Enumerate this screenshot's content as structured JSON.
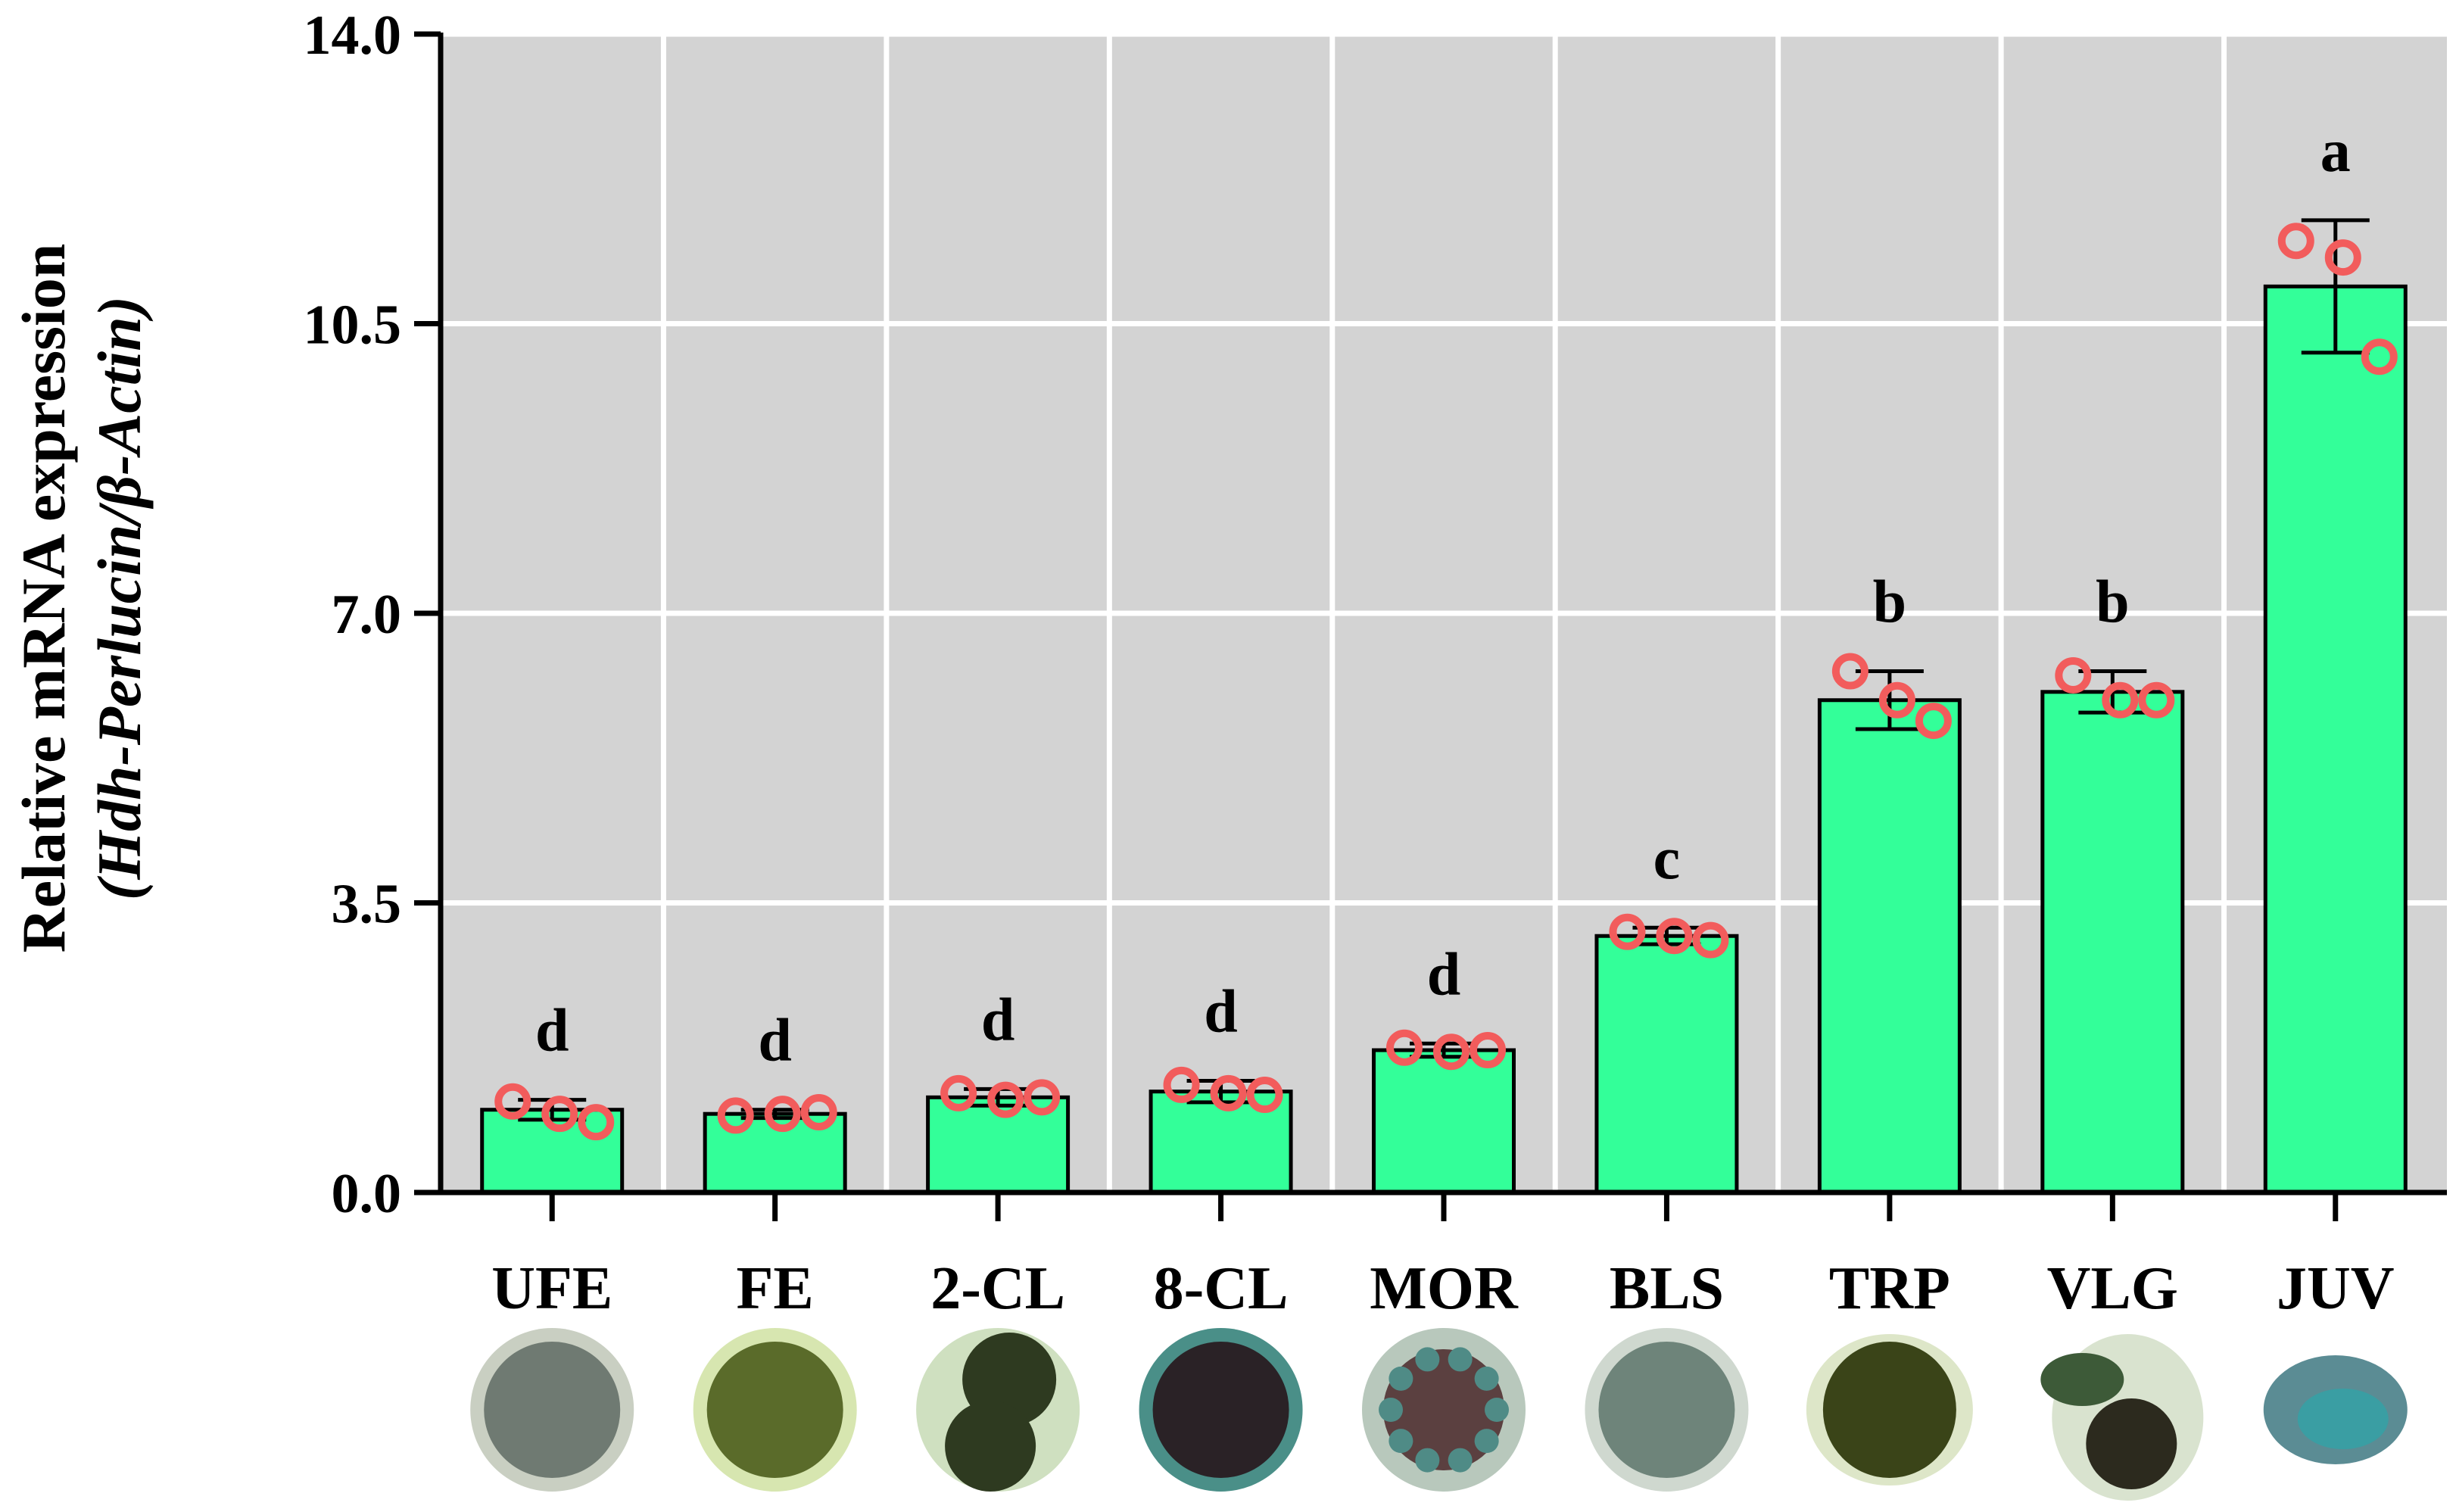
{
  "chart_data": {
    "type": "bar",
    "ylabel_line1": "Relative mRNA expression",
    "ylabel_line2": "(Hdh-Perlucin/β-Actin)",
    "ylim": [
      0,
      14
    ],
    "yticks": [
      "0.0",
      "3.5",
      "7.0",
      "10.5",
      "14.0"
    ],
    "ytick_values": [
      0,
      3.5,
      7,
      10.5,
      14
    ],
    "grid": true,
    "categories": [
      "UFE",
      "FE",
      "2-CL",
      "8-CL",
      "MOR",
      "BLS",
      "TRP",
      "VLG",
      "JUV"
    ],
    "values": [
      1.0,
      0.95,
      1.15,
      1.22,
      1.72,
      3.1,
      5.95,
      6.05,
      10.95
    ],
    "errors": [
      0.12,
      0.05,
      0.1,
      0.13,
      0.08,
      0.1,
      0.35,
      0.25,
      0.8
    ],
    "points": [
      [
        1.1,
        0.95,
        0.85
      ],
      [
        0.93,
        0.95,
        0.97
      ],
      [
        1.2,
        1.12,
        1.15
      ],
      [
        1.3,
        1.2,
        1.18
      ],
      [
        1.75,
        1.7,
        1.72
      ],
      [
        3.15,
        3.1,
        3.05
      ],
      [
        6.3,
        5.95,
        5.7
      ],
      [
        6.25,
        5.95,
        5.95
      ],
      [
        11.5,
        11.3,
        10.1
      ]
    ],
    "letters": [
      "d",
      "d",
      "d",
      "d",
      "d",
      "c",
      "b",
      "b",
      "a"
    ],
    "colors": {
      "bar": "#33ff99",
      "point": "#f25c5c",
      "grid_bg": "#d3d3d3",
      "grid_line": "#ffffff"
    }
  },
  "embryo_images": [
    {
      "stage": "UFE",
      "icon": "unfertilized-egg-photo",
      "fill": "#6f7a72",
      "edge": "#c9cfc2",
      "shape": "round"
    },
    {
      "stage": "FE",
      "icon": "fertilized-egg-photo",
      "fill": "#5a6b2a",
      "edge": "#d7e6b0",
      "shape": "round"
    },
    {
      "stage": "2-CL",
      "icon": "two-cell-embryo-photo",
      "fill": "#2e3a20",
      "edge": "#cfe0c0",
      "shape": "two-cell"
    },
    {
      "stage": "8-CL",
      "icon": "eight-cell-embryo-photo",
      "fill": "#2a2226",
      "edge": "#4a8f88",
      "shape": "round"
    },
    {
      "stage": "MOR",
      "icon": "morula-photo",
      "fill": "#5b4040",
      "edge": "#b8c8bc",
      "shape": "morula"
    },
    {
      "stage": "BLS",
      "icon": "blastula-photo",
      "fill": "#6e847a",
      "edge": "#cfd8cf",
      "shape": "round"
    },
    {
      "stage": "TRP",
      "icon": "trochophore-photo",
      "fill": "#3a4418",
      "edge": "#dde6c8",
      "shape": "oval"
    },
    {
      "stage": "VLG",
      "icon": "veliger-photo",
      "fill": "#3d5a38",
      "edge": "#d9e3cf",
      "shape": "veliger"
    },
    {
      "stage": "JUV",
      "icon": "juvenile-photo",
      "fill": "#5b8c94",
      "edge": "#d8e6e6",
      "shape": "shell"
    }
  ]
}
